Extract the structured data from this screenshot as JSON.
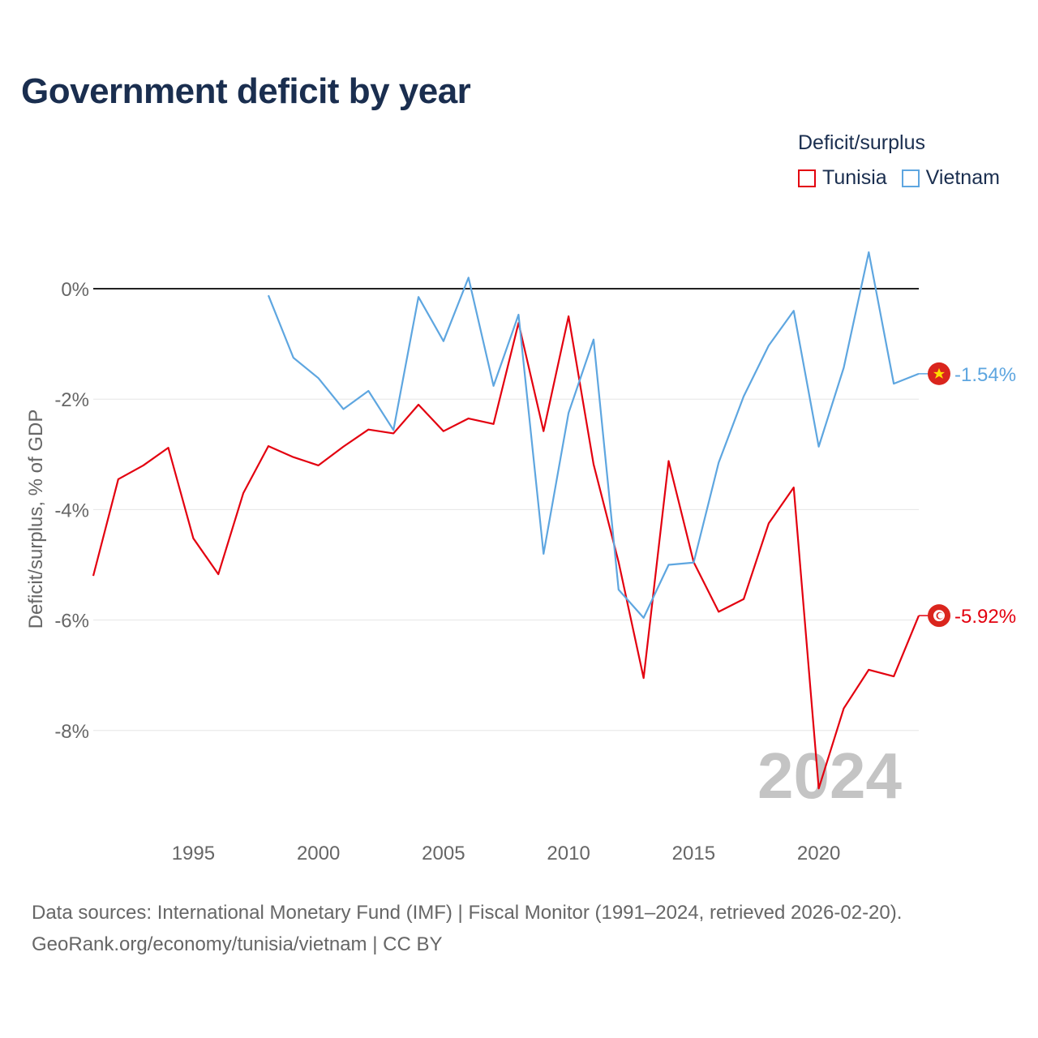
{
  "title": "Government deficit by year",
  "legend": {
    "title": "Deficit/surplus",
    "items": [
      {
        "label": "Tunisia",
        "color": "#e3000f"
      },
      {
        "label": "Vietnam",
        "color": "#5ea6e0"
      }
    ]
  },
  "year_watermark": "2024",
  "footer": {
    "line1": "Data sources: International Monetary Fund (IMF) | Fiscal Monitor (1991–2024, retrieved 2026-02-20).",
    "line2": "GeoRank.org/economy/tunisia/vietnam | CC BY"
  },
  "chart_data": {
    "type": "line",
    "title": "Government deficit by year",
    "ylabel": "Deficit/surplus, % of GDP",
    "xlabel": "",
    "xlim": [
      1991,
      2024
    ],
    "ylim": [
      -9.5,
      0.8
    ],
    "x_ticks": [
      1995,
      2000,
      2005,
      2010,
      2015,
      2020
    ],
    "y_ticks": [
      0,
      -2,
      -4,
      -6,
      -8
    ],
    "y_tick_labels": [
      "0%",
      "-2%",
      "-4%",
      "-6%",
      "-8%"
    ],
    "grid": true,
    "series": [
      {
        "name": "Tunisia",
        "color": "#e3000f",
        "end_label": "-5.92%",
        "x": [
          1991,
          1992,
          1993,
          1994,
          1995,
          1996,
          1997,
          1998,
          1999,
          2000,
          2001,
          2002,
          2003,
          2004,
          2005,
          2006,
          2007,
          2008,
          2009,
          2010,
          2011,
          2012,
          2013,
          2014,
          2015,
          2016,
          2017,
          2018,
          2019,
          2020,
          2021,
          2022,
          2023,
          2024
        ],
        "values": [
          -5.2,
          -3.45,
          -3.2,
          -2.88,
          -4.52,
          -5.17,
          -3.7,
          -2.85,
          -3.05,
          -3.2,
          -2.86,
          -2.55,
          -2.62,
          -2.1,
          -2.58,
          -2.35,
          -2.45,
          -0.62,
          -2.58,
          -0.5,
          -3.18,
          -4.95,
          -7.05,
          -3.12,
          -4.95,
          -5.85,
          -5.62,
          -4.25,
          -3.6,
          -9.05,
          -7.6,
          -6.9,
          -7.02,
          -5.92
        ]
      },
      {
        "name": "Vietnam",
        "color": "#5ea6e0",
        "end_label": "-1.54%",
        "x": [
          1998,
          1999,
          2000,
          2001,
          2002,
          2003,
          2004,
          2005,
          2006,
          2007,
          2008,
          2009,
          2010,
          2011,
          2012,
          2013,
          2014,
          2015,
          2016,
          2017,
          2018,
          2019,
          2020,
          2021,
          2022,
          2023,
          2024
        ],
        "values": [
          -0.12,
          -1.25,
          -1.62,
          -2.18,
          -1.85,
          -2.56,
          -0.15,
          -0.95,
          0.2,
          -1.76,
          -0.47,
          -4.8,
          -2.25,
          -0.92,
          -5.45,
          -5.96,
          -5.0,
          -4.96,
          -3.15,
          -1.95,
          -1.03,
          -0.4,
          -2.86,
          -1.43,
          0.66,
          -1.72,
          -1.54
        ]
      }
    ]
  }
}
